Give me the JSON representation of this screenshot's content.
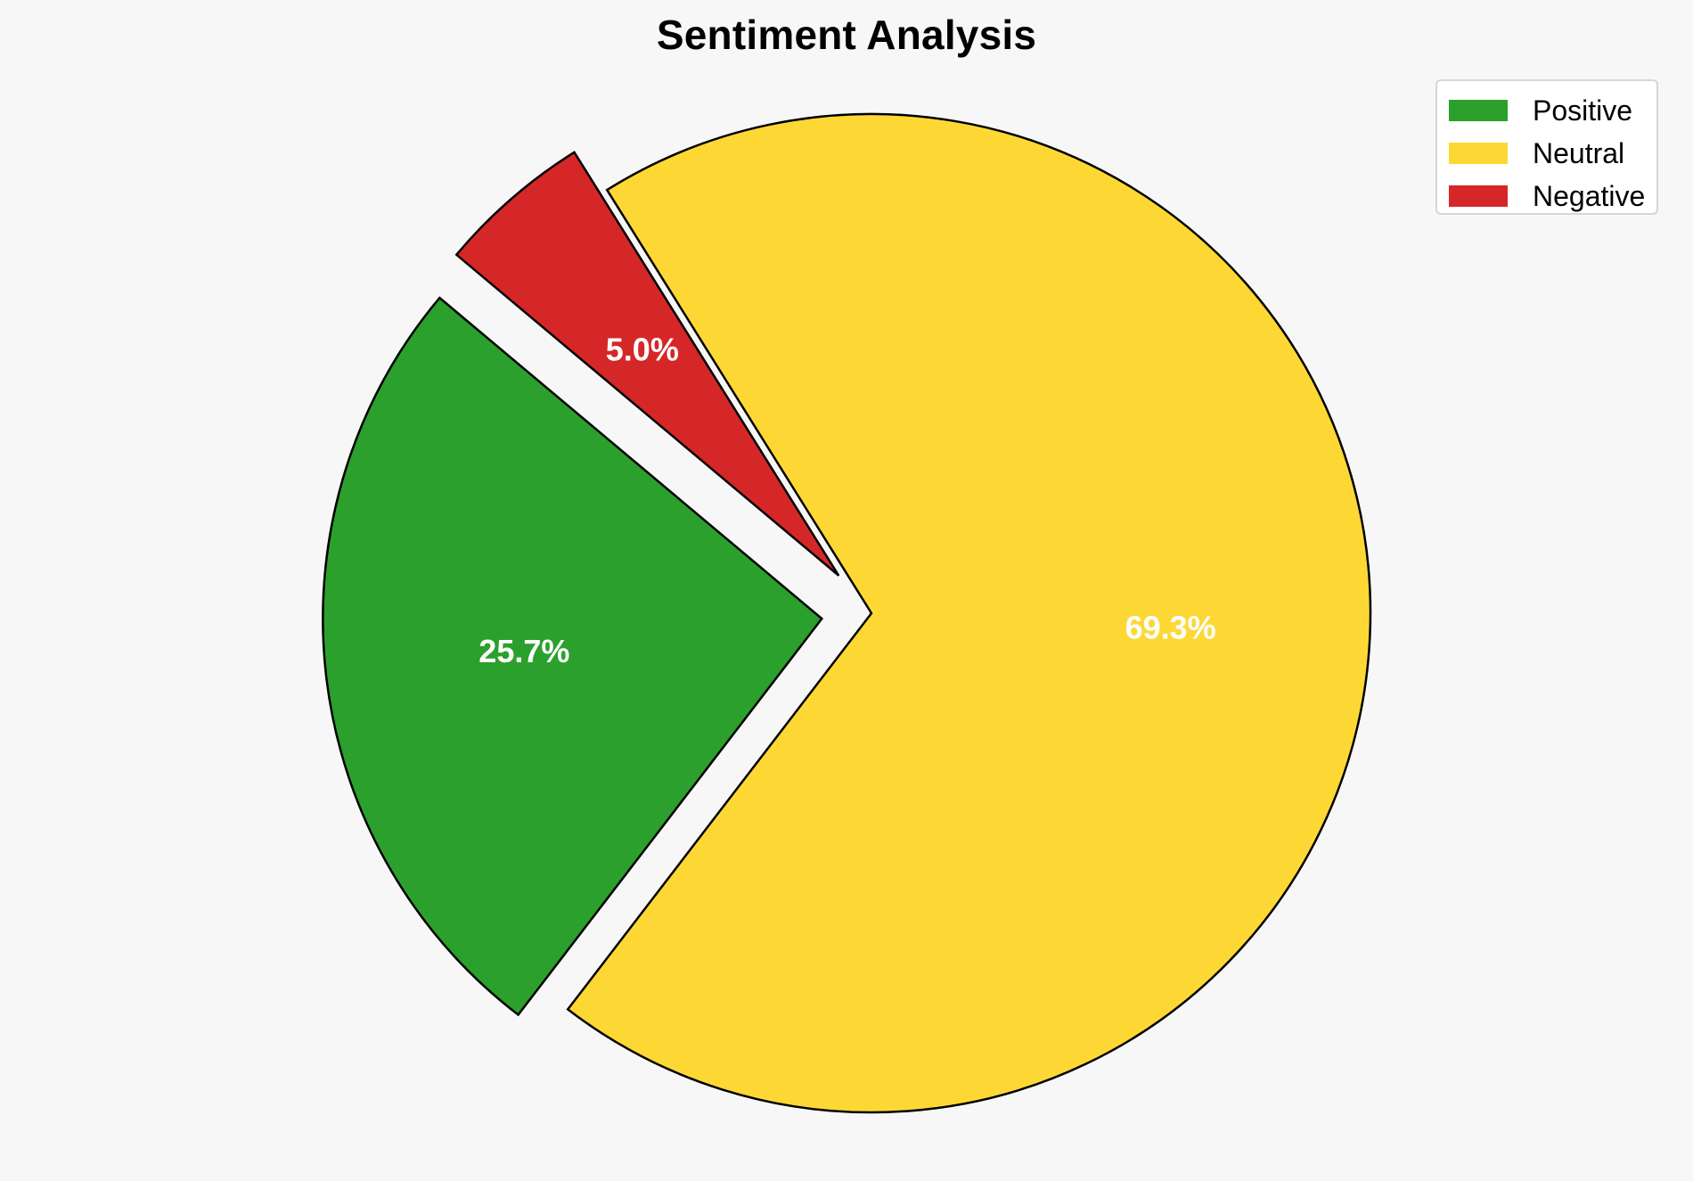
{
  "chart_data": {
    "type": "pie",
    "title": "Sentiment Analysis",
    "categories": [
      "Positive",
      "Neutral",
      "Negative"
    ],
    "values": [
      25.7,
      69.3,
      5.0
    ],
    "value_labels": [
      "25.7%",
      "69.3%",
      "5.0%"
    ],
    "colors": [
      "#2ca02c",
      "#fdd835",
      "#d62728"
    ],
    "exploded": [
      true,
      false,
      true
    ],
    "legend": {
      "placement": "top-right",
      "entries": [
        "Positive",
        "Neutral",
        "Negative"
      ]
    }
  }
}
